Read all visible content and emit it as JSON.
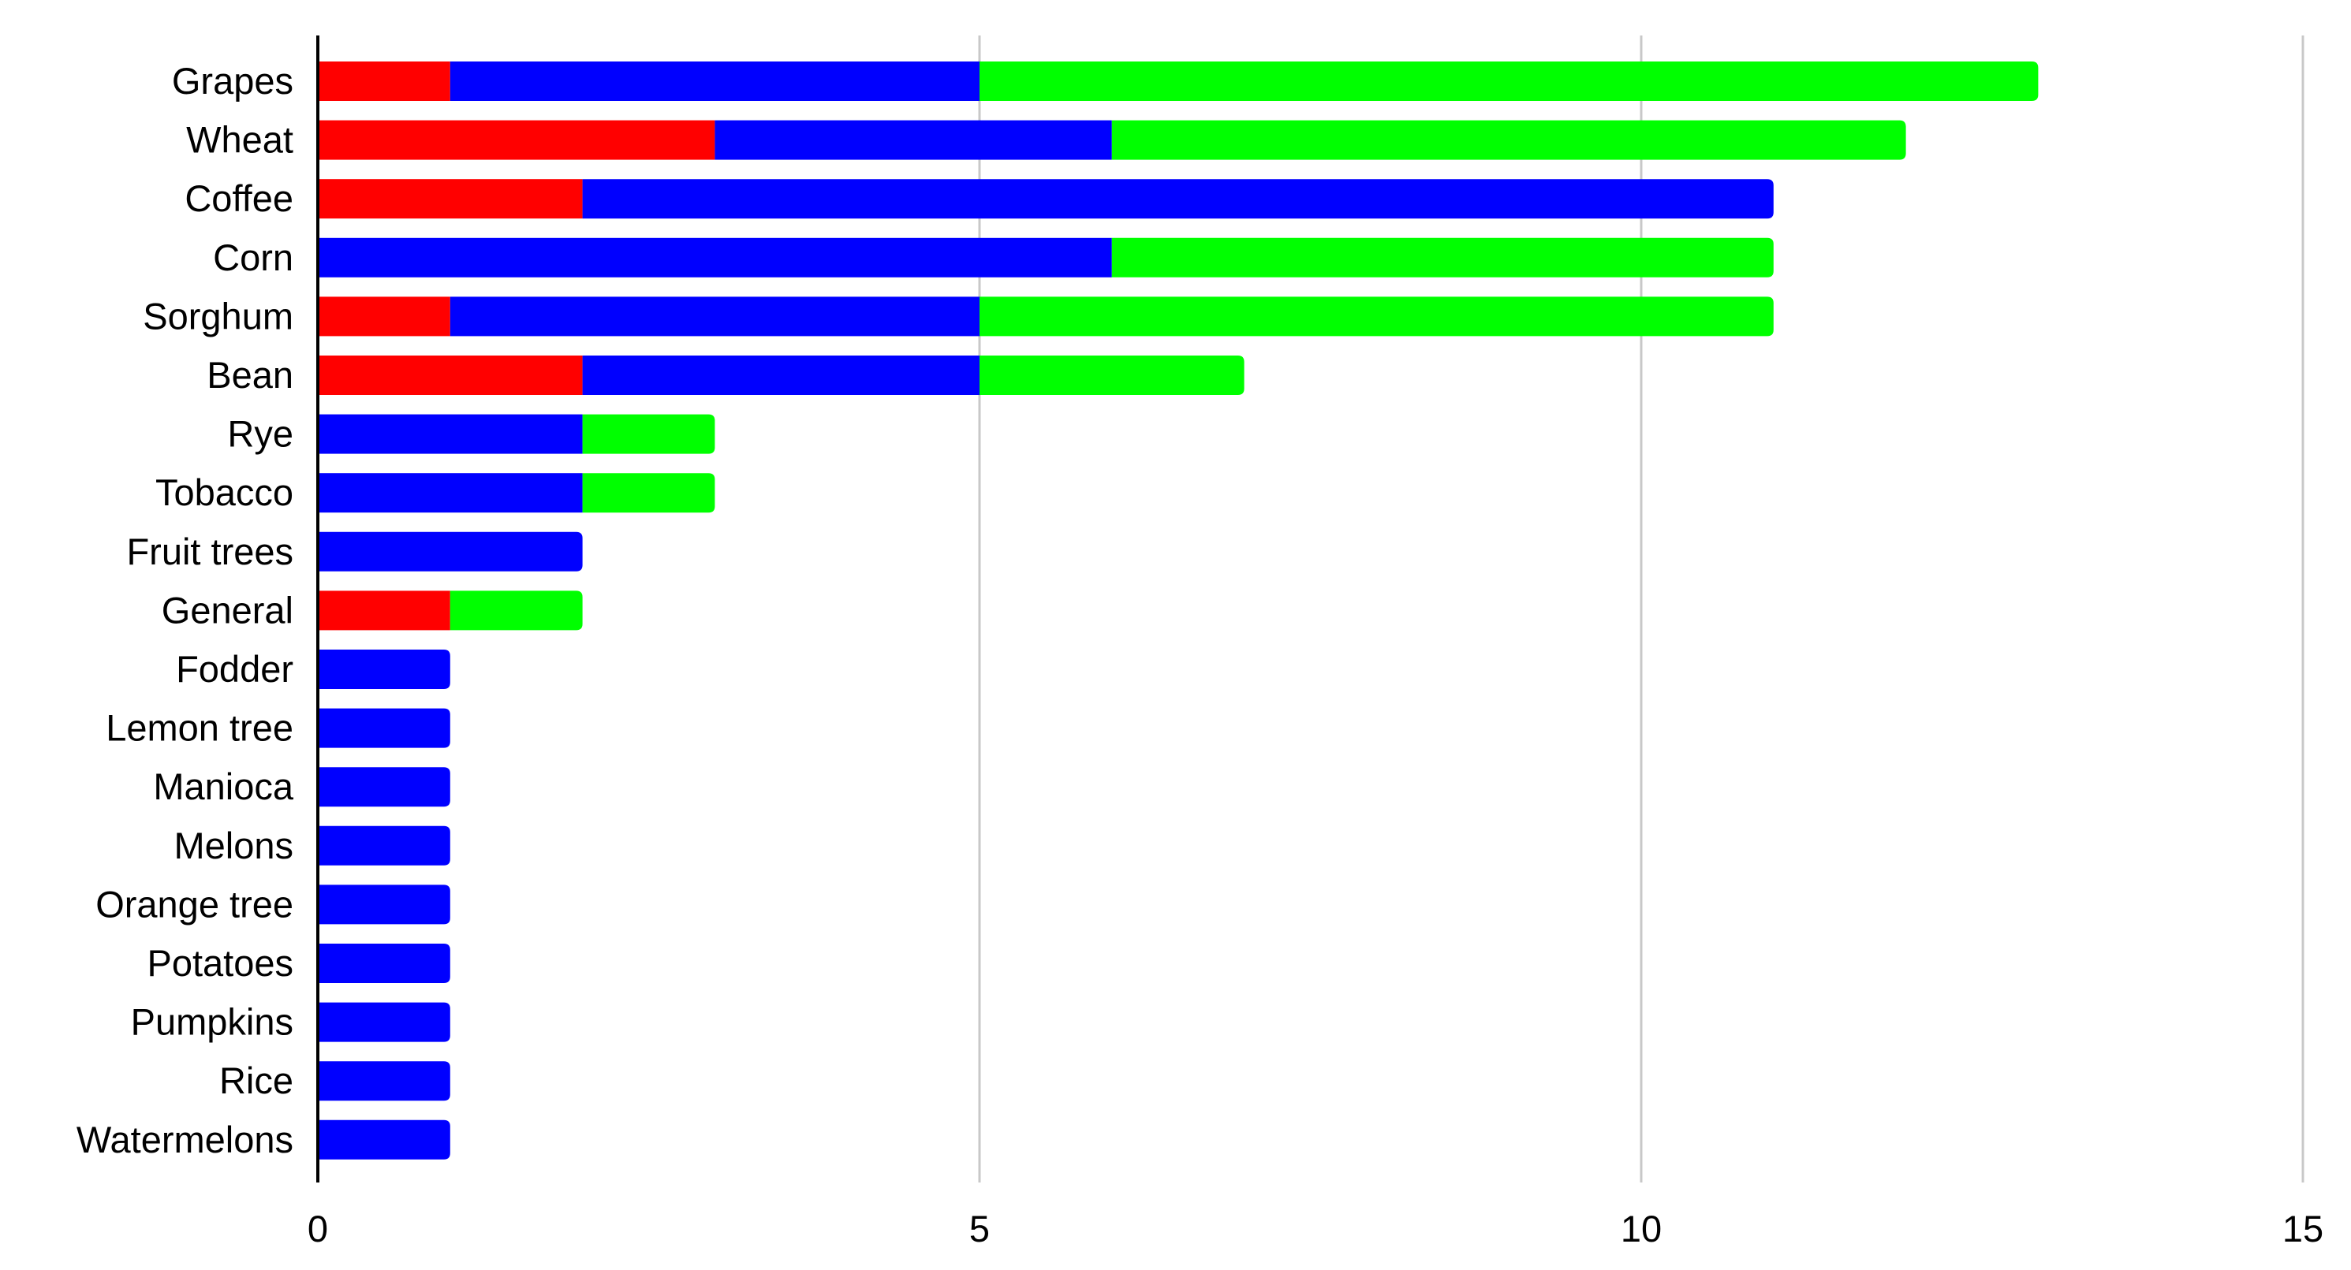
{
  "chart_data": {
    "type": "bar",
    "orientation": "horizontal",
    "stacked": true,
    "title": "",
    "xlabel": "",
    "ylabel": "",
    "xlim": [
      0,
      15
    ],
    "xticks": [
      0,
      5,
      10,
      15
    ],
    "grid": "vertical",
    "legend": "none",
    "categories": [
      "Grapes",
      "Wheat",
      "Coffee",
      "Corn",
      "Sorghum",
      "Bean",
      "Rye",
      "Tobacco",
      "Fruit trees",
      "General",
      "Fodder",
      "Lemon tree",
      "Manioca",
      "Melons",
      "Orange tree",
      "Potatoes",
      "Pumpkins",
      "Rice",
      "Watermelons"
    ],
    "series": [
      {
        "color": "#ff0000",
        "values": [
          1,
          3,
          2,
          0,
          1,
          2,
          0,
          0,
          0,
          1,
          0,
          0,
          0,
          0,
          0,
          0,
          0,
          0,
          0
        ]
      },
      {
        "color": "#0000ff",
        "values": [
          4,
          3,
          9,
          6,
          4,
          3,
          2,
          2,
          2,
          0,
          1,
          1,
          1,
          1,
          1,
          1,
          1,
          1,
          1
        ]
      },
      {
        "color": "#00ff00",
        "values": [
          8,
          6,
          0,
          5,
          6,
          2,
          1,
          1,
          0,
          1,
          0,
          0,
          0,
          0,
          0,
          0,
          0,
          0,
          0
        ]
      }
    ]
  }
}
